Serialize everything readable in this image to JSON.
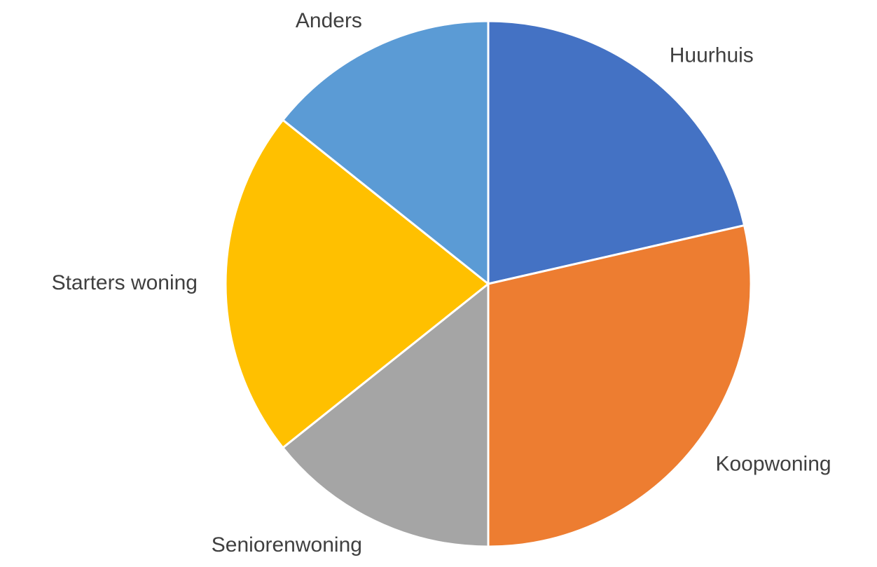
{
  "chart_data": {
    "type": "pie",
    "categories": [
      "Huurhuis",
      "Koopwoning",
      "Seniorenwoning",
      "Starters woning",
      "Anders"
    ],
    "values": [
      3,
      4,
      2,
      3,
      2
    ],
    "colors": [
      "#4472c4",
      "#ed7d31",
      "#a5a5a5",
      "#ffc000",
      "#5b9bd5"
    ]
  }
}
